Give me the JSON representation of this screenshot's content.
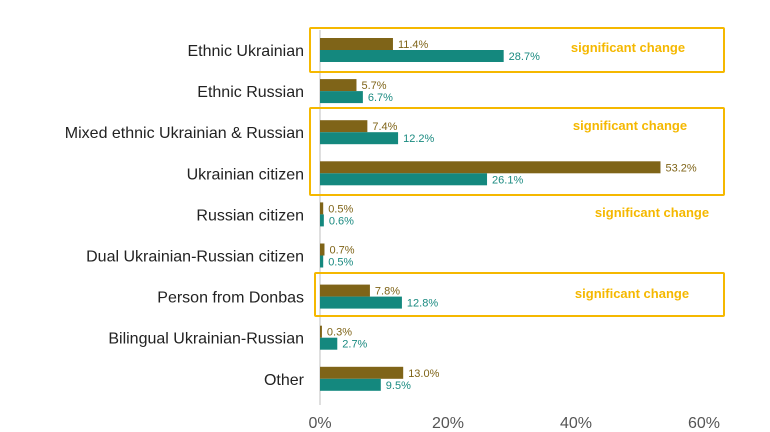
{
  "chart_data": {
    "type": "bar",
    "orientation": "horizontal",
    "categories": [
      "Ethnic Ukrainian",
      "Ethnic Russian",
      "Mixed ethnic Ukrainian & Russian",
      "Ukrainian citizen",
      "Russian citizen",
      "Dual Ukrainian-Russian citizen",
      "Person from Donbas",
      "Bilingual Ukrainian-Russian",
      "Other"
    ],
    "series": [
      {
        "values": [
          11.4,
          5.7,
          7.4,
          53.2,
          0.5,
          0.7,
          7.8,
          0.3,
          13.0
        ],
        "labels": [
          "11.4%",
          "5.7%",
          "7.4%",
          "53.2%",
          "0.5%",
          "0.7%",
          "7.8%",
          "0.3%",
          "13.0%"
        ],
        "color": "#7f6418",
        "label_color": "#7f6418"
      },
      {
        "values": [
          28.7,
          6.7,
          12.2,
          26.1,
          0.6,
          0.5,
          12.8,
          2.7,
          9.5
        ],
        "labels": [
          "28.7%",
          "6.7%",
          "12.2%",
          "26.1%",
          "0.6%",
          "0.5%",
          "12.8%",
          "2.7%",
          "9.5%"
        ],
        "color": "#14887e",
        "label_color": "#1a8a80"
      }
    ],
    "x_ticks": [
      {
        "value": 0,
        "label": "0%"
      },
      {
        "value": 20,
        "label": "20%"
      },
      {
        "value": 40,
        "label": "40%"
      },
      {
        "value": 60,
        "label": "60%"
      }
    ],
    "xlim": [
      0,
      60
    ],
    "title": "",
    "xlabel": "",
    "ylabel": "",
    "grid": false,
    "legend": "none",
    "annotations": [
      {
        "text": "significant change",
        "categories": [
          0
        ],
        "boxed": true
      },
      {
        "text": "significant change",
        "categories": [
          2,
          3
        ],
        "boxed": true
      },
      {
        "text": "significant change",
        "categories": [
          4
        ],
        "boxed": false
      },
      {
        "text": "significant change",
        "categories": [
          6
        ],
        "boxed": true
      }
    ],
    "annotation_color": "#f5b800"
  }
}
